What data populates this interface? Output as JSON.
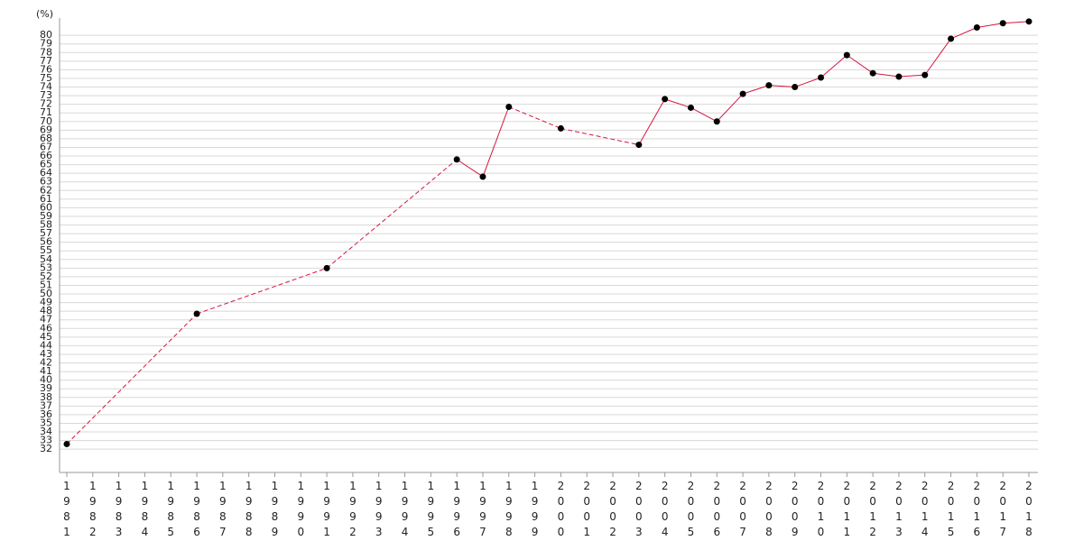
{
  "chart_data": {
    "type": "line",
    "y_label": "(%)",
    "categories": [
      "1981",
      "1982",
      "1983",
      "1984",
      "1985",
      "1986",
      "1987",
      "1988",
      "1989",
      "1990",
      "1991",
      "1992",
      "1993",
      "1994",
      "1995",
      "1996",
      "1997",
      "1998",
      "1999",
      "2000",
      "2001",
      "2002",
      "2003",
      "2004",
      "2005",
      "2006",
      "2007",
      "2008",
      "2009",
      "2010",
      "2011",
      "2012",
      "2013",
      "2014",
      "2015",
      "2016",
      "2017",
      "2018"
    ],
    "series": [
      {
        "color": "#d6163f",
        "marker_color": "#000000",
        "values": [
          32.6,
          null,
          null,
          null,
          null,
          47.7,
          null,
          null,
          null,
          null,
          53.0,
          null,
          null,
          null,
          null,
          65.6,
          63.6,
          71.7,
          null,
          69.2,
          null,
          null,
          67.3,
          72.6,
          71.6,
          70.0,
          73.2,
          74.2,
          74.0,
          75.1,
          77.7,
          75.6,
          75.2,
          75.4,
          79.6,
          80.9,
          81.4,
          81.6
        ]
      }
    ],
    "ylim": [
      29.3,
      82
    ],
    "yticks": [
      32,
      33,
      34,
      35,
      36,
      37,
      38,
      39,
      40,
      41,
      42,
      43,
      44,
      45,
      46,
      47,
      48,
      49,
      50,
      51,
      52,
      53,
      54,
      55,
      56,
      57,
      58,
      59,
      60,
      61,
      62,
      63,
      64,
      65,
      66,
      67,
      68,
      69,
      70,
      71,
      72,
      73,
      74,
      75,
      76,
      77,
      78,
      79,
      80
    ],
    "grid": true,
    "gap_style": "dashed"
  }
}
